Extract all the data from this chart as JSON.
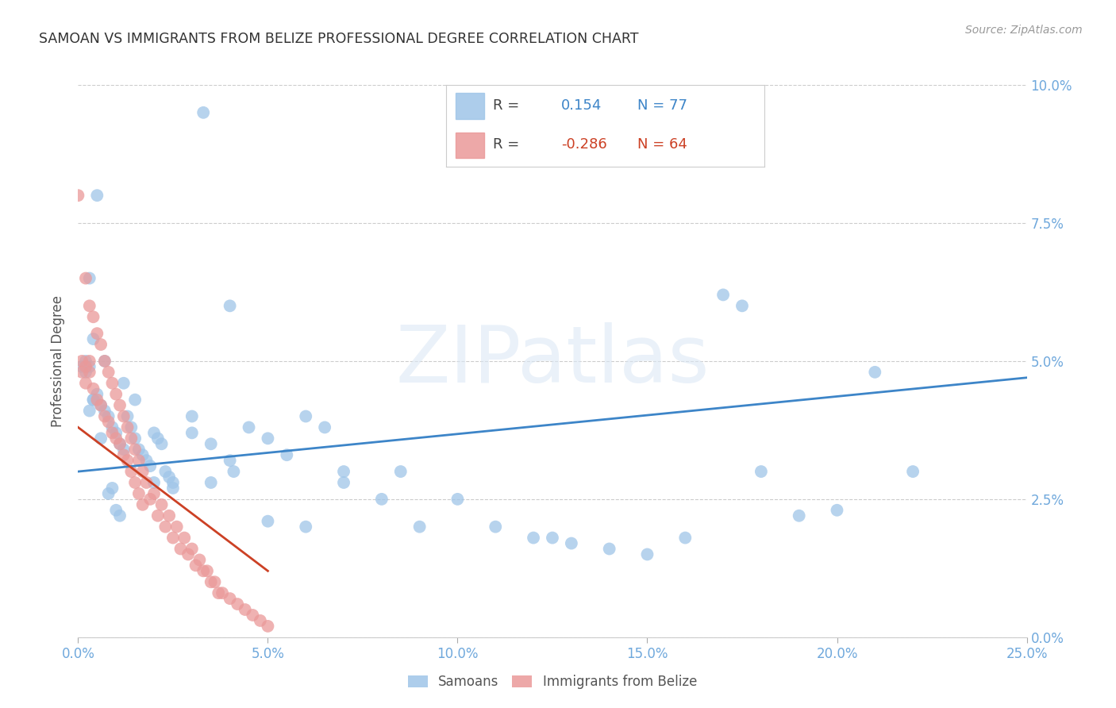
{
  "title": "SAMOAN VS IMMIGRANTS FROM BELIZE PROFESSIONAL DEGREE CORRELATION CHART",
  "source": "Source: ZipAtlas.com",
  "ylabel": "Professional Degree",
  "watermark": "ZIPatlas",
  "x_min": 0.0,
  "x_max": 0.25,
  "y_min": 0.0,
  "y_max": 0.1,
  "y_ticks": [
    0.0,
    0.025,
    0.05,
    0.075,
    0.1
  ],
  "x_ticks": [
    0.0,
    0.05,
    0.1,
    0.15,
    0.2,
    0.25
  ],
  "legend_r_blue": "0.154",
  "legend_n_blue": "77",
  "legend_r_pink": "-0.286",
  "legend_n_pink": "64",
  "blue_color": "#9fc5e8",
  "pink_color": "#ea9999",
  "line_blue_color": "#3d85c8",
  "line_pink_color": "#cc4125",
  "title_color": "#333333",
  "axis_color": "#6fa8dc",
  "legend_text_color": "#444444",
  "background_color": "#ffffff",
  "grid_color": "#cccccc",
  "blue_line_x0": 0.0,
  "blue_line_x1": 0.25,
  "blue_line_y0": 0.03,
  "blue_line_y1": 0.047,
  "pink_line_x0": 0.0,
  "pink_line_x1": 0.05,
  "pink_line_y0": 0.038,
  "pink_line_y1": 0.012,
  "samoans_x": [
    0.033,
    0.005,
    0.002,
    0.003,
    0.001,
    0.002,
    0.004,
    0.003,
    0.004,
    0.005,
    0.006,
    0.007,
    0.008,
    0.009,
    0.01,
    0.011,
    0.012,
    0.013,
    0.014,
    0.015,
    0.016,
    0.017,
    0.018,
    0.019,
    0.02,
    0.021,
    0.022,
    0.023,
    0.024,
    0.025,
    0.03,
    0.035,
    0.04,
    0.045,
    0.05,
    0.055,
    0.06,
    0.065,
    0.07,
    0.08,
    0.09,
    0.1,
    0.11,
    0.12,
    0.13,
    0.14,
    0.15,
    0.16,
    0.17,
    0.175,
    0.18,
    0.19,
    0.2,
    0.21,
    0.22,
    0.007,
    0.008,
    0.009,
    0.01,
    0.011,
    0.012,
    0.015,
    0.02,
    0.025,
    0.03,
    0.035,
    0.04,
    0.05,
    0.06,
    0.07,
    0.003,
    0.002,
    0.004,
    0.006,
    0.041,
    0.085,
    0.125
  ],
  "samoans_y": [
    0.095,
    0.08,
    0.049,
    0.049,
    0.049,
    0.048,
    0.043,
    0.041,
    0.043,
    0.044,
    0.042,
    0.041,
    0.04,
    0.038,
    0.037,
    0.035,
    0.034,
    0.04,
    0.038,
    0.036,
    0.034,
    0.033,
    0.032,
    0.031,
    0.037,
    0.036,
    0.035,
    0.03,
    0.029,
    0.028,
    0.04,
    0.035,
    0.06,
    0.038,
    0.036,
    0.033,
    0.04,
    0.038,
    0.03,
    0.025,
    0.02,
    0.025,
    0.02,
    0.018,
    0.017,
    0.016,
    0.015,
    0.018,
    0.062,
    0.06,
    0.03,
    0.022,
    0.023,
    0.048,
    0.03,
    0.05,
    0.026,
    0.027,
    0.023,
    0.022,
    0.046,
    0.043,
    0.028,
    0.027,
    0.037,
    0.028,
    0.032,
    0.021,
    0.02,
    0.028,
    0.065,
    0.05,
    0.054,
    0.036,
    0.03,
    0.03,
    0.018
  ],
  "belize_x": [
    0.0,
    0.001,
    0.002,
    0.002,
    0.003,
    0.003,
    0.004,
    0.004,
    0.005,
    0.005,
    0.006,
    0.006,
    0.007,
    0.007,
    0.008,
    0.008,
    0.009,
    0.009,
    0.01,
    0.01,
    0.011,
    0.011,
    0.012,
    0.012,
    0.013,
    0.013,
    0.014,
    0.014,
    0.015,
    0.015,
    0.016,
    0.016,
    0.017,
    0.017,
    0.018,
    0.019,
    0.02,
    0.021,
    0.022,
    0.023,
    0.024,
    0.025,
    0.026,
    0.027,
    0.028,
    0.029,
    0.03,
    0.031,
    0.032,
    0.033,
    0.034,
    0.035,
    0.036,
    0.037,
    0.038,
    0.04,
    0.042,
    0.044,
    0.046,
    0.048,
    0.05,
    0.001,
    0.003,
    0.002
  ],
  "belize_y": [
    0.08,
    0.05,
    0.065,
    0.049,
    0.06,
    0.048,
    0.058,
    0.045,
    0.055,
    0.043,
    0.053,
    0.042,
    0.05,
    0.04,
    0.048,
    0.039,
    0.046,
    0.037,
    0.044,
    0.036,
    0.042,
    0.035,
    0.04,
    0.033,
    0.038,
    0.032,
    0.036,
    0.03,
    0.034,
    0.028,
    0.032,
    0.026,
    0.03,
    0.024,
    0.028,
    0.025,
    0.026,
    0.022,
    0.024,
    0.02,
    0.022,
    0.018,
    0.02,
    0.016,
    0.018,
    0.015,
    0.016,
    0.013,
    0.014,
    0.012,
    0.012,
    0.01,
    0.01,
    0.008,
    0.008,
    0.007,
    0.006,
    0.005,
    0.004,
    0.003,
    0.002,
    0.048,
    0.05,
    0.046
  ]
}
